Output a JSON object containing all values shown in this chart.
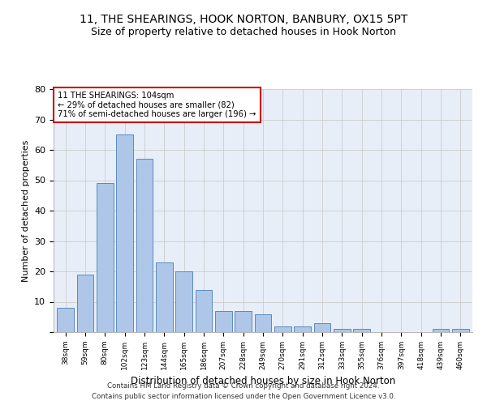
{
  "title1": "11, THE SHEARINGS, HOOK NORTON, BANBURY, OX15 5PT",
  "title2": "Size of property relative to detached houses in Hook Norton",
  "xlabel": "Distribution of detached houses by size in Hook Norton",
  "ylabel": "Number of detached properties",
  "categories": [
    "38sqm",
    "59sqm",
    "80sqm",
    "102sqm",
    "123sqm",
    "144sqm",
    "165sqm",
    "186sqm",
    "207sqm",
    "228sqm",
    "249sqm",
    "270sqm",
    "291sqm",
    "312sqm",
    "333sqm",
    "355sqm",
    "376sqm",
    "397sqm",
    "418sqm",
    "439sqm",
    "460sqm"
  ],
  "values": [
    8,
    19,
    49,
    65,
    57,
    23,
    20,
    14,
    7,
    7,
    6,
    2,
    2,
    3,
    1,
    1,
    0,
    0,
    0,
    1,
    1
  ],
  "bar_color": "#aec6e8",
  "bar_edge_color": "#5a8abf",
  "annotation_line1": "11 THE SHEARINGS: 104sqm",
  "annotation_line2": "← 29% of detached houses are smaller (82)",
  "annotation_line3": "71% of semi-detached houses are larger (196) →",
  "annotation_box_color": "#ffffff",
  "annotation_box_edge": "#cc0000",
  "footer1": "Contains HM Land Registry data © Crown copyright and database right 2024.",
  "footer2": "Contains public sector information licensed under the Open Government Licence v3.0.",
  "ylim": [
    0,
    80
  ],
  "yticks": [
    0,
    10,
    20,
    30,
    40,
    50,
    60,
    70,
    80
  ],
  "grid_color": "#cccccc",
  "bg_color": "#e8eef8",
  "title_fontsize": 10,
  "subtitle_fontsize": 9
}
